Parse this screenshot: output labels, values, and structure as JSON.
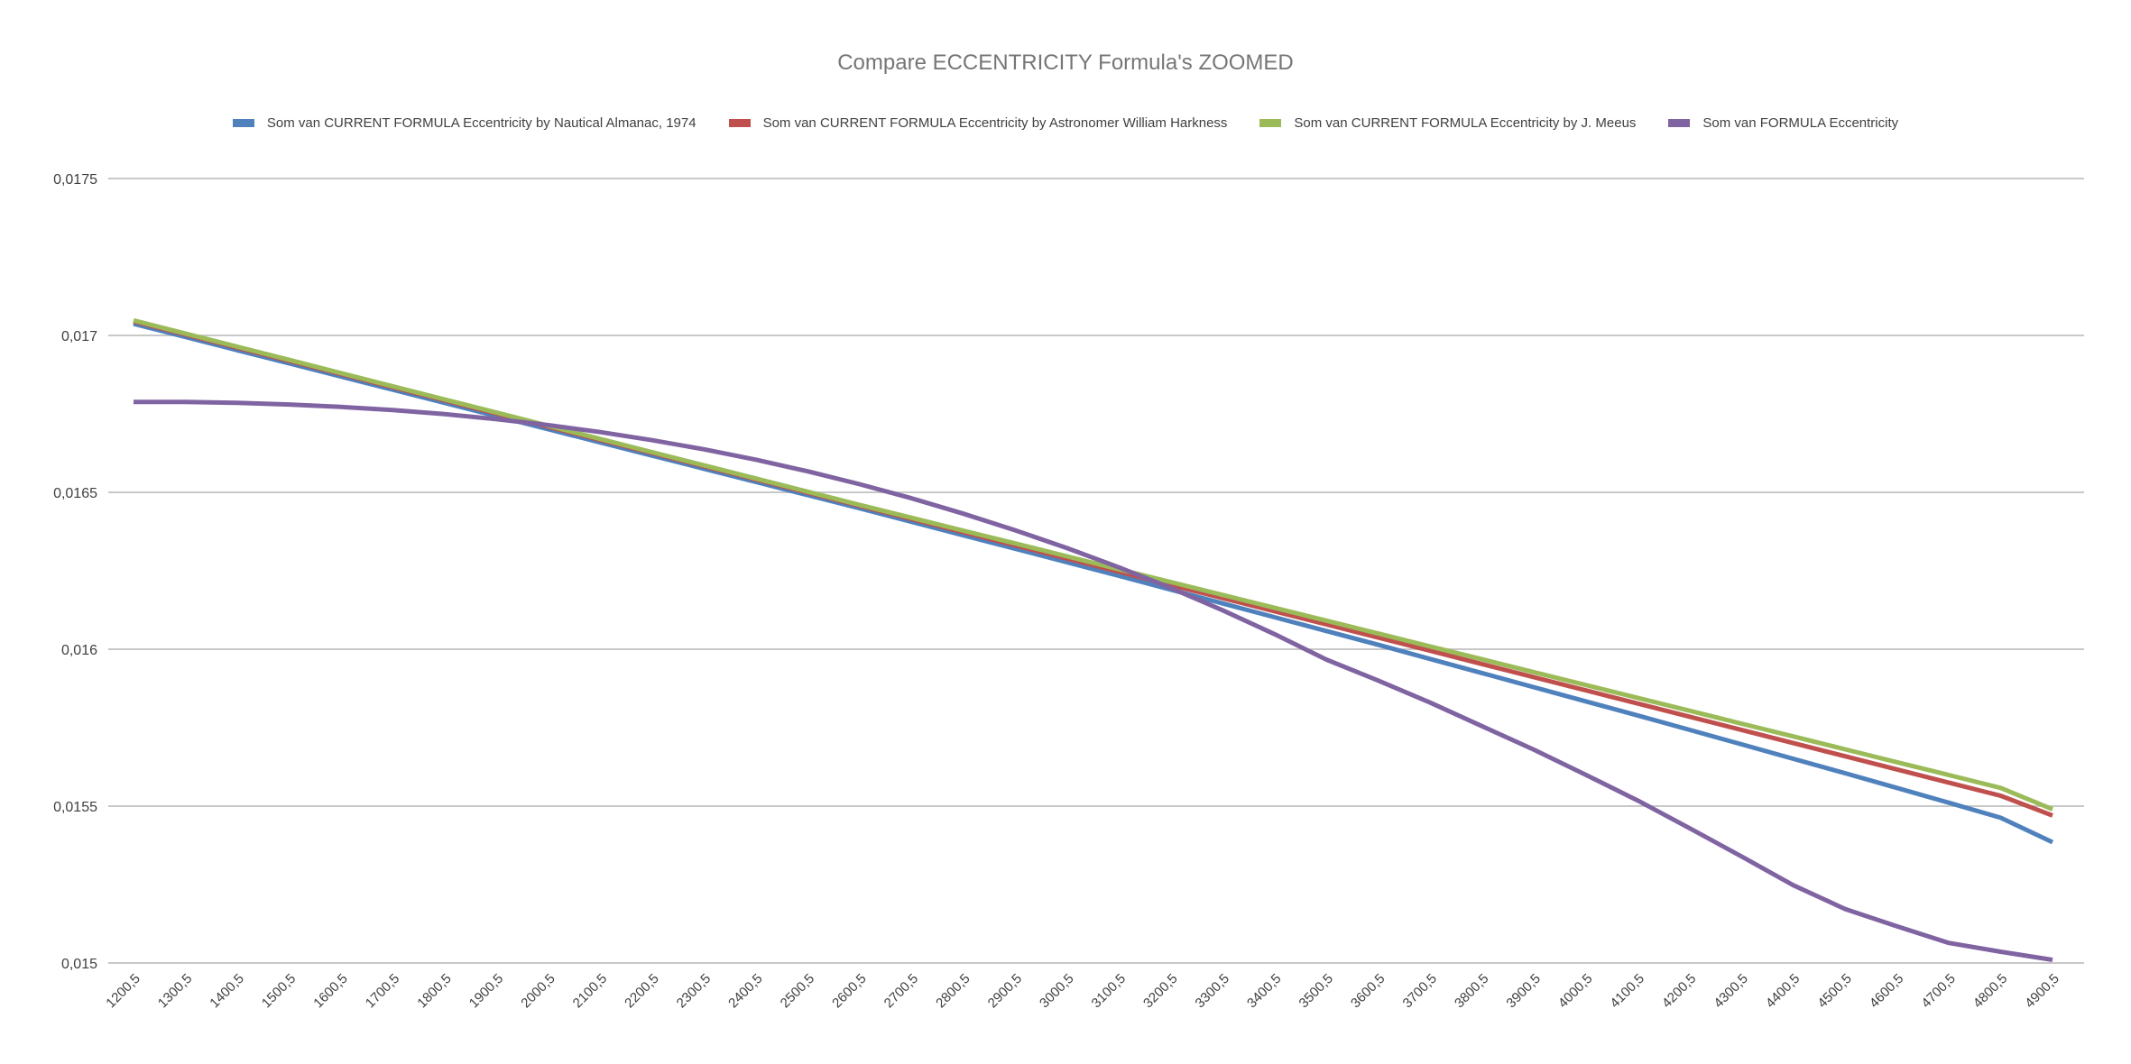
{
  "chart_data": {
    "type": "line",
    "title": "Compare ECCENTRICITY Formula's ZOOMED",
    "xlabel": "",
    "ylabel": "",
    "ylim": [
      0.015,
      0.0175
    ],
    "yticks": [
      "0,015",
      "0,0155",
      "0,016",
      "0,0165",
      "0,017",
      "0,0175"
    ],
    "ytick_values": [
      0.015,
      0.0155,
      0.016,
      0.0165,
      0.017,
      0.0175
    ],
    "grid": true,
    "legend_position": "top",
    "categories": [
      "1200,5",
      "1300,5",
      "1400,5",
      "1500,5",
      "1600,5",
      "1700,5",
      "1800,5",
      "1900,5",
      "2000,5",
      "2100,5",
      "2200,5",
      "2300,5",
      "2400,5",
      "2500,5",
      "2600,5",
      "2700,5",
      "2800,5",
      "2900,5",
      "3000,5",
      "3100,5",
      "3200,5",
      "3300,5",
      "3400,5",
      "3500,5",
      "3600,5",
      "3700,5",
      "3800,5",
      "3900,5",
      "4000,5",
      "4100,5",
      "4200,5",
      "4300,5",
      "4400,5",
      "4500,5",
      "4600,5",
      "4700,5",
      "4800,5",
      "4900,5"
    ],
    "x": [
      1200.5,
      1300.5,
      1400.5,
      1500.5,
      1600.5,
      1700.5,
      1800.5,
      1900.5,
      2000.5,
      2100.5,
      2200.5,
      2300.5,
      2400.5,
      2500.5,
      2600.5,
      2700.5,
      2800.5,
      2900.5,
      3000.5,
      3100.5,
      3200.5,
      3300.5,
      3400.5,
      3500.5,
      3600.5,
      3700.5,
      3800.5,
      3900.5,
      4000.5,
      4100.5,
      4200.5,
      4300.5,
      4400.5,
      4500.5,
      4600.5,
      4700.5,
      4800.5,
      4900.5
    ],
    "series": [
      {
        "name": "Som van CURRENT FORMULA Eccentricity by Nautical Almanac, 1974",
        "color": "#4F81BD",
        "values": [
          0.017037,
          0.016995,
          0.016953,
          0.016911,
          0.016869,
          0.016827,
          0.016785,
          0.016743,
          0.016701,
          0.016659,
          0.016617,
          0.016575,
          0.016533,
          0.016491,
          0.016449,
          0.016406,
          0.016363,
          0.01632,
          0.016277,
          0.016234,
          0.01619,
          0.016146,
          0.016102,
          0.016058,
          0.016014,
          0.015969,
          0.015924,
          0.015879,
          0.015834,
          0.015789,
          0.015743,
          0.015697,
          0.015651,
          0.015605,
          0.015558,
          0.015511,
          0.015463,
          0.015385
        ]
      },
      {
        "name": "Som van CURRENT FORMULA Eccentricity by Astronomer William Harkness",
        "color": "#C0504D",
        "values": [
          0.017045,
          0.017003,
          0.016961,
          0.016919,
          0.016877,
          0.016835,
          0.016793,
          0.016751,
          0.016709,
          0.016667,
          0.016625,
          0.016583,
          0.016541,
          0.016499,
          0.016457,
          0.016415,
          0.016373,
          0.016331,
          0.016289,
          0.016247,
          0.016205,
          0.016163,
          0.016121,
          0.016079,
          0.016037,
          0.015995,
          0.015953,
          0.015911,
          0.015869,
          0.015827,
          0.015785,
          0.015743,
          0.015701,
          0.015659,
          0.015617,
          0.015575,
          0.015533,
          0.01547
        ]
      },
      {
        "name": "Som van CURRENT FORMULA Eccentricity by J. Meeus",
        "color": "#9BBB59",
        "values": [
          0.017048,
          0.017006,
          0.016964,
          0.016922,
          0.01688,
          0.016838,
          0.016796,
          0.016754,
          0.016712,
          0.01667,
          0.016628,
          0.016586,
          0.016544,
          0.016502,
          0.01646,
          0.016419,
          0.016378,
          0.016337,
          0.016296,
          0.016255,
          0.016214,
          0.016173,
          0.016132,
          0.016091,
          0.01605,
          0.016009,
          0.015968,
          0.015927,
          0.015886,
          0.015845,
          0.015804,
          0.015763,
          0.015722,
          0.015681,
          0.01564,
          0.015599,
          0.015558,
          0.01549
        ]
      },
      {
        "name": "Som van FORMULA Eccentricity",
        "color": "#8064A2",
        "values": [
          0.016788,
          0.016788,
          0.016785,
          0.01678,
          0.016772,
          0.016762,
          0.016749,
          0.016733,
          0.016714,
          0.016692,
          0.016666,
          0.016637,
          0.016604,
          0.016567,
          0.016526,
          0.016481,
          0.016432,
          0.016379,
          0.016322,
          0.016261,
          0.016195,
          0.016124,
          0.016048,
          0.015967,
          0.0159,
          0.01583,
          0.015755,
          0.01568,
          0.0156,
          0.015518,
          0.01543,
          0.01534,
          0.015248,
          0.015172,
          0.015117,
          0.015064,
          0.015036,
          0.01501
        ]
      }
    ]
  },
  "legend": {
    "items": [
      {
        "label": "Som van CURRENT FORMULA Eccentricity by Nautical Almanac, 1974",
        "color": "#4F81BD"
      },
      {
        "label": "Som van CURRENT FORMULA Eccentricity by Astronomer William Harkness",
        "color": "#C0504D"
      },
      {
        "label": "Som van CURRENT FORMULA Eccentricity by J. Meeus",
        "color": "#9BBB59"
      },
      {
        "label": "Som van FORMULA Eccentricity",
        "color": "#8064A2"
      }
    ]
  }
}
